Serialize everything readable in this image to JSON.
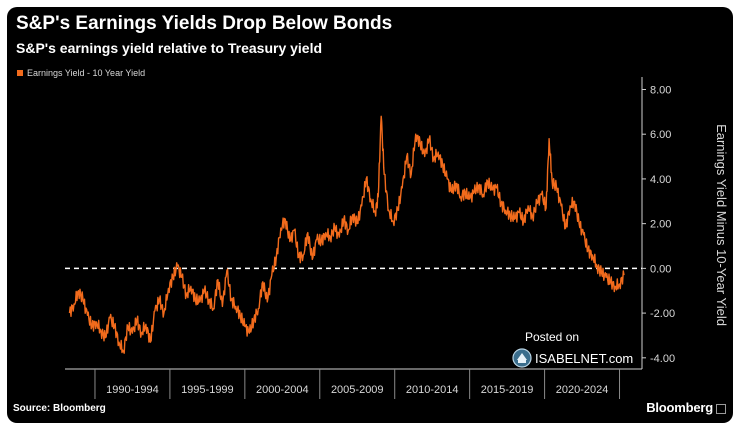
{
  "chart_data": {
    "type": "line",
    "title": "S&P's Earnings Yields Drop Below Bonds",
    "subtitle": "S&P's earnings yield relative to Treasury yield",
    "ylabel": "Earnings Yield Minus 10-Year Yield",
    "ylim": [
      -4.5,
      8.2
    ],
    "yticks": [
      "8.00",
      "6.00",
      "4.00",
      "2.00",
      "0.00",
      "-2.00",
      "-4.00"
    ],
    "ytick_values": [
      8,
      6,
      4,
      2,
      0,
      -2,
      -4
    ],
    "xlim": [
      1988.0,
      2026.5
    ],
    "xtick_labels": [
      "1990-1994",
      "1995-1999",
      "2000-2004",
      "2005-2009",
      "2010-2014",
      "2015-2019",
      "2020-2024"
    ],
    "xtick_centers": [
      1992.5,
      1997.5,
      2002.5,
      2007.5,
      2012.5,
      2017.5,
      2022.5
    ],
    "xtick_boundaries": [
      1990,
      1995,
      2000,
      2005,
      2010,
      2015,
      2020,
      2025
    ],
    "reference_line": 0,
    "series": [
      {
        "name": "Earnings Yield - 10 Year Yield",
        "color": "#f26b1c",
        "x": [
          1988.3,
          1988.6,
          1988.9,
          1989.2,
          1989.5,
          1989.8,
          1990.1,
          1990.4,
          1990.7,
          1991.0,
          1991.3,
          1991.6,
          1991.9,
          1992.2,
          1992.5,
          1992.8,
          1993.1,
          1993.4,
          1993.7,
          1994.0,
          1994.3,
          1994.6,
          1994.9,
          1995.2,
          1995.5,
          1995.8,
          1996.1,
          1996.4,
          1996.7,
          1997.0,
          1997.3,
          1997.6,
          1997.9,
          1998.2,
          1998.5,
          1998.8,
          1999.1,
          1999.4,
          1999.7,
          2000.0,
          2000.3,
          2000.6,
          2000.9,
          2001.2,
          2001.5,
          2001.8,
          2002.1,
          2002.4,
          2002.7,
          2003.0,
          2003.3,
          2003.6,
          2003.9,
          2004.2,
          2004.5,
          2004.8,
          2005.1,
          2005.4,
          2005.7,
          2006.0,
          2006.3,
          2006.6,
          2006.9,
          2007.2,
          2007.5,
          2007.8,
          2008.1,
          2008.4,
          2008.7,
          2008.9,
          2009.1,
          2009.3,
          2009.6,
          2009.9,
          2010.2,
          2010.5,
          2010.8,
          2011.1,
          2011.4,
          2011.7,
          2012.0,
          2012.3,
          2012.6,
          2012.9,
          2013.2,
          2013.5,
          2013.8,
          2014.1,
          2014.4,
          2014.7,
          2015.0,
          2015.3,
          2015.6,
          2015.9,
          2016.2,
          2016.5,
          2016.8,
          2017.1,
          2017.4,
          2017.7,
          2018.0,
          2018.3,
          2018.6,
          2018.9,
          2019.2,
          2019.5,
          2019.8,
          2020.1,
          2020.3,
          2020.5,
          2020.8,
          2021.1,
          2021.4,
          2021.7,
          2022.0,
          2022.3,
          2022.6,
          2022.9,
          2023.2,
          2023.5,
          2023.8,
          2024.1,
          2024.4,
          2024.7,
          2025.0,
          2025.3
        ],
        "values": [
          -2.0,
          -1.6,
          -1.0,
          -1.4,
          -2.1,
          -2.6,
          -2.4,
          -2.8,
          -3.1,
          -2.2,
          -2.6,
          -3.3,
          -3.7,
          -2.6,
          -2.9,
          -2.3,
          -2.9,
          -2.5,
          -3.3,
          -1.9,
          -1.4,
          -2.0,
          -0.9,
          -0.4,
          0.1,
          -0.4,
          -1.2,
          -0.8,
          -1.4,
          -1.5,
          -1.0,
          -1.4,
          -1.8,
          -0.5,
          -1.7,
          -0.1,
          -1.4,
          -1.7,
          -2.1,
          -2.6,
          -2.9,
          -2.3,
          -1.8,
          -0.6,
          -1.5,
          -0.3,
          0.5,
          1.8,
          2.2,
          1.2,
          1.7,
          0.5,
          0.6,
          1.6,
          0.4,
          1.3,
          1.2,
          1.6,
          1.4,
          1.8,
          1.4,
          2.2,
          1.7,
          2.4,
          2.0,
          2.8,
          4.0,
          3.1,
          2.5,
          3.2,
          6.8,
          4.2,
          2.6,
          2.1,
          2.6,
          3.6,
          5.0,
          4.2,
          6.0,
          5.6,
          5.0,
          5.8,
          4.9,
          5.2,
          4.6,
          4.0,
          3.4,
          3.8,
          3.2,
          3.4,
          3.1,
          3.4,
          3.7,
          3.3,
          3.9,
          3.5,
          3.6,
          2.9,
          2.6,
          2.4,
          2.2,
          2.5,
          2.1,
          2.8,
          2.3,
          2.9,
          3.3,
          2.7,
          5.8,
          3.9,
          3.6,
          2.8,
          1.8,
          2.8,
          3.0,
          2.0,
          1.5,
          0.8,
          0.6,
          0.1,
          -0.2,
          -0.4,
          -0.6,
          -0.8,
          -0.7,
          -0.3
        ]
      }
    ]
  },
  "legend_label": "Earnings Yield - 10 Year Yield",
  "source": "Source: Bloomberg",
  "brand": "Bloomberg",
  "watermark": {
    "top": "Posted on",
    "name": "ISABELNET.com"
  },
  "colors": {
    "background": "#000000",
    "line": "#f26b1c",
    "text": "#ffffff",
    "axis_text": "#d8d8d8"
  }
}
